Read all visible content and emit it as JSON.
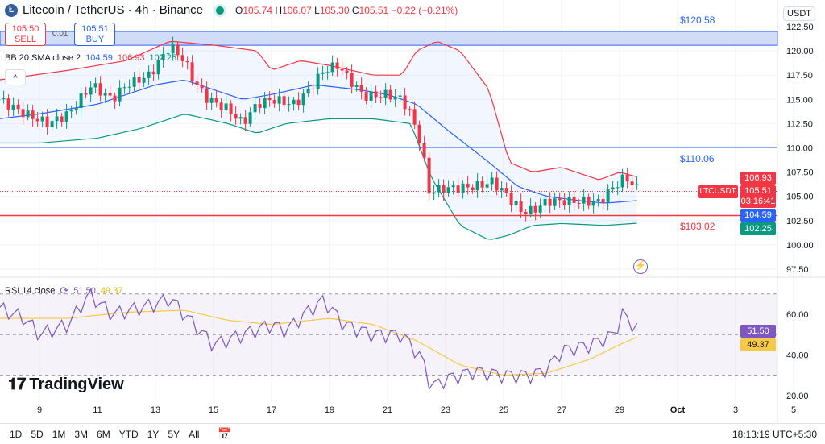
{
  "header": {
    "logo_letter": "Ł",
    "title": "Litecoin / TetherUS · 4h · Binance",
    "open_label": "O",
    "open": "105.74",
    "high_label": "H",
    "high": "106.07",
    "low_label": "L",
    "low": "105.30",
    "close_label": "C",
    "close": "105.51",
    "change": "−0.22 (−0.21%)"
  },
  "trade": {
    "sell_price": "105.50",
    "sell_label": "SELL",
    "spread": "0.01",
    "buy_price": "105.51",
    "buy_label": "BUY"
  },
  "bb_legend": {
    "name": "BB 20 SMA close 2",
    "basis": "104.59",
    "upper": "106.93",
    "lower": "102.25"
  },
  "collapse_icon": "^",
  "rsi_legend": {
    "name": "RSI 14 close",
    "rsi": "51.50",
    "ma": "49.37"
  },
  "currency": "USDT",
  "price_tags": {
    "upper": "106.93",
    "symbol": "LTCUSDT",
    "last": "105.51",
    "countdown": "03:16:41",
    "basis": "104.59",
    "lower": "102.25",
    "rsi": "51.50",
    "rsi_ma": "49.37"
  },
  "annotations": {
    "top": "$120.58",
    "mid": "$110.06",
    "low": "$103.02"
  },
  "bottom": {
    "ranges": [
      "1D",
      "5D",
      "1M",
      "3M",
      "6M",
      "YTD",
      "1Y",
      "5Y",
      "All"
    ],
    "time": "18:13:19 UTC+5:30"
  },
  "brand": "TradingView",
  "colors": {
    "up": "#089981",
    "down": "#f23645",
    "basis": "#2962ff",
    "rsi": "#7e57c2",
    "rsi_ma": "#f7c948"
  },
  "chart_data": {
    "type": "line",
    "title": "Litecoin / TetherUS · 4h · Binance",
    "y_ticks": [
      "122.50",
      "120.00",
      "117.50",
      "115.00",
      "112.50",
      "110.00",
      "107.50",
      "105.00",
      "102.50",
      "100.00",
      "97.50"
    ],
    "ylim": [
      97.5,
      122.5
    ],
    "x_ticks": [
      "9",
      "11",
      "13",
      "15",
      "17",
      "19",
      "21",
      "23",
      "25",
      "27",
      "29",
      "Oct",
      "3",
      "5"
    ],
    "rsi_ticks": [
      "60.00",
      "40.00",
      "20.00"
    ],
    "horizontal_lines": [
      120.58,
      110.06,
      103.02
    ],
    "close": [
      [
        7.6,
        115
      ],
      [
        8.5,
        113.5
      ],
      [
        9.3,
        112.5
      ],
      [
        10,
        113.5
      ],
      [
        10.8,
        116.5
      ],
      [
        11.5,
        115
      ],
      [
        12,
        116.5
      ],
      [
        12.8,
        117.5
      ],
      [
        13.5,
        120.5
      ],
      [
        14,
        119
      ],
      [
        14.3,
        117
      ],
      [
        14.8,
        115
      ],
      [
        15.5,
        114
      ],
      [
        16,
        112.5
      ],
      [
        16.5,
        114.5
      ],
      [
        17,
        115
      ],
      [
        17.8,
        114.5
      ],
      [
        18.3,
        116
      ],
      [
        18.8,
        118
      ],
      [
        19.3,
        118.5
      ],
      [
        19.7,
        117
      ],
      [
        20.2,
        115.3
      ],
      [
        21,
        115.5
      ],
      [
        21.5,
        115
      ],
      [
        21.8,
        113.5
      ],
      [
        22.2,
        110
      ],
      [
        22.4,
        105.5
      ],
      [
        23,
        105.8
      ],
      [
        24,
        106
      ],
      [
        24.6,
        106.5
      ],
      [
        25,
        105.5
      ],
      [
        25.6,
        103.5
      ],
      [
        26,
        103.5
      ],
      [
        26.5,
        104.5
      ],
      [
        27.5,
        104.5
      ],
      [
        28.3,
        104.4
      ],
      [
        28.8,
        106
      ],
      [
        29.2,
        107
      ],
      [
        29.7,
        105.5
      ]
    ],
    "bb_upper": [
      [
        7.6,
        117
      ],
      [
        10,
        118
      ],
      [
        12,
        119
      ],
      [
        13.5,
        121
      ],
      [
        15,
        120.6
      ],
      [
        16.5,
        120
      ],
      [
        17,
        118
      ],
      [
        18,
        119
      ],
      [
        19,
        118.5
      ],
      [
        20.5,
        117.5
      ],
      [
        21.5,
        117.5
      ],
      [
        22,
        120
      ],
      [
        22.7,
        121
      ],
      [
        23.5,
        120
      ],
      [
        24.5,
        116
      ],
      [
        25.2,
        108.5
      ],
      [
        26,
        107.5
      ],
      [
        27,
        108
      ],
      [
        28.3,
        106.7
      ],
      [
        29,
        107.5
      ],
      [
        29.7,
        106.93
      ]
    ],
    "bb_basis": [
      [
        7.6,
        113
      ],
      [
        9,
        113.5
      ],
      [
        11,
        114.5
      ],
      [
        13,
        116.5
      ],
      [
        14,
        117
      ],
      [
        15,
        116
      ],
      [
        16,
        115
      ],
      [
        17,
        115.5
      ],
      [
        18.5,
        116.5
      ],
      [
        20,
        116
      ],
      [
        21,
        115.5
      ],
      [
        22,
        114.5
      ],
      [
        23,
        112
      ],
      [
        24.5,
        108.5
      ],
      [
        25.5,
        106
      ],
      [
        26.5,
        105
      ],
      [
        27.5,
        104.6
      ],
      [
        28.5,
        104.3
      ],
      [
        29.7,
        104.59
      ]
    ],
    "bb_lower": [
      [
        7.6,
        110.5
      ],
      [
        9,
        110.5
      ],
      [
        11,
        111
      ],
      [
        12.5,
        112
      ],
      [
        14,
        113.5
      ],
      [
        15.5,
        112.5
      ],
      [
        16.5,
        111.5
      ],
      [
        17.5,
        112.5
      ],
      [
        19,
        113
      ],
      [
        20.5,
        113
      ],
      [
        21.8,
        112.5
      ],
      [
        22.5,
        107
      ],
      [
        23.5,
        102
      ],
      [
        24.5,
        100.5
      ],
      [
        25.2,
        101
      ],
      [
        26,
        102
      ],
      [
        27,
        102.2
      ],
      [
        28.5,
        102
      ],
      [
        29.7,
        102.25
      ]
    ],
    "rsi": [
      [
        7.6,
        63
      ],
      [
        8.5,
        58
      ],
      [
        9,
        50
      ],
      [
        10,
        55
      ],
      [
        10.7,
        70
      ],
      [
        11.5,
        60
      ],
      [
        13,
        65
      ],
      [
        13.5,
        68
      ],
      [
        14,
        60
      ],
      [
        15,
        45
      ],
      [
        16,
        50
      ],
      [
        17,
        55
      ],
      [
        17.5,
        52
      ],
      [
        18.3,
        62
      ],
      [
        18.8,
        67
      ],
      [
        19.5,
        55
      ],
      [
        20.5,
        50
      ],
      [
        21.5,
        50
      ],
      [
        22.2,
        38
      ],
      [
        22.5,
        24
      ],
      [
        23,
        28
      ],
      [
        24,
        32
      ],
      [
        25,
        30
      ],
      [
        26,
        30
      ],
      [
        26.5,
        33
      ],
      [
        27,
        42
      ],
      [
        28,
        45
      ],
      [
        28.8,
        50
      ],
      [
        29.1,
        60
      ],
      [
        29.7,
        51.5
      ]
    ],
    "rsi_ma": [
      [
        7.6,
        58
      ],
      [
        10,
        58
      ],
      [
        12,
        61
      ],
      [
        14,
        62
      ],
      [
        15.5,
        57
      ],
      [
        17,
        55
      ],
      [
        19,
        58
      ],
      [
        20.5,
        55
      ],
      [
        22,
        47
      ],
      [
        23.5,
        35
      ],
      [
        25,
        30
      ],
      [
        26.5,
        31
      ],
      [
        28,
        38
      ],
      [
        29,
        45
      ],
      [
        29.7,
        49.37
      ]
    ]
  }
}
